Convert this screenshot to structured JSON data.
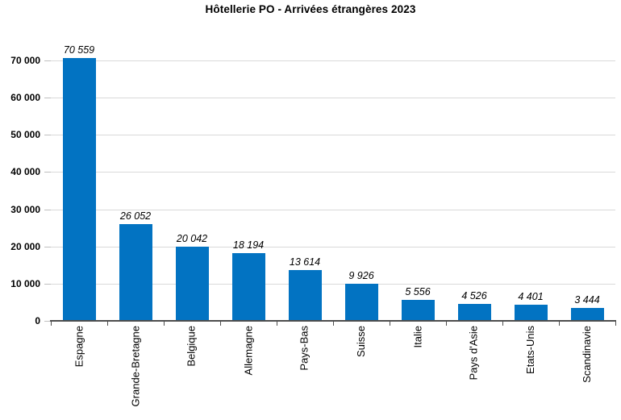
{
  "colors": {
    "bar": "#0273C2",
    "gridline": "#D9D9D9",
    "axis": "#4D4D4D",
    "y_tick": "#BFBFBF",
    "text": "#000000",
    "background": "#FFFFFF"
  },
  "chart_data": {
    "type": "bar",
    "title": "Hôtellerie PO - Arrivées étrangères 2023",
    "categories": [
      "Espagne",
      "Grande-Bretagne",
      "Belgique",
      "Allemagne",
      "Pays-Bas",
      "Suisse",
      "Italie",
      "Pays d'Asie",
      "Etats-Unis",
      "Scandinavie"
    ],
    "values": [
      70559,
      26052,
      20042,
      18194,
      13614,
      9926,
      5556,
      4526,
      4401,
      3444
    ],
    "value_labels": [
      "70 559",
      "26 052",
      "20 042",
      "18 194",
      "13 614",
      "9 926",
      "5 556",
      "4 526",
      "4 401",
      "3 444"
    ],
    "xlabel": "",
    "ylabel": "",
    "ylim": [
      0,
      70000
    ],
    "ytick_interval": 10000,
    "ytick_labels": [
      "0",
      "10 000",
      "20 000",
      "30 000",
      "40 000",
      "50 000",
      "60 000",
      "70 000"
    ],
    "grid": true,
    "legend": false
  }
}
